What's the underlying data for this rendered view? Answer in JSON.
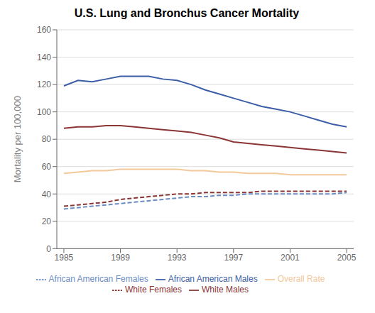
{
  "chart_data": {
    "type": "line",
    "title": "U.S. Lung and Bronchus Cancer Mortality",
    "ylabel": "Mortality per 100,000",
    "x": [
      1985,
      1986,
      1987,
      1988,
      1989,
      1990,
      1991,
      1992,
      1993,
      1994,
      1995,
      1996,
      1997,
      1998,
      1999,
      2000,
      2001,
      2002,
      2003,
      2004,
      2005
    ],
    "series": [
      {
        "name": "White Males",
        "color": "#8B3535",
        "line_style": "solid",
        "values": [
          88,
          89,
          89,
          90,
          90,
          89,
          88,
          87,
          86,
          85,
          83,
          81,
          78,
          77,
          76,
          75,
          74,
          73,
          72,
          71,
          70
        ]
      },
      {
        "name": "White Females",
        "color": "#8B3535",
        "line_style": "dashed",
        "values": [
          31,
          32,
          33,
          34,
          36,
          37,
          38,
          39,
          40,
          40,
          41,
          41,
          41,
          41,
          42,
          42,
          42,
          42,
          42,
          42,
          42
        ]
      },
      {
        "name": "Overall Rate",
        "color": "#F4C89A",
        "line_style": "solid",
        "values": [
          55,
          56,
          57,
          57,
          58,
          58,
          58,
          58,
          58,
          57,
          57,
          56,
          56,
          55,
          55,
          55,
          54,
          54,
          54,
          54,
          54
        ]
      },
      {
        "name": "African American Males",
        "color": "#3B5EA6",
        "line_style": "solid",
        "values": [
          119,
          123,
          122,
          124,
          126,
          126,
          126,
          124,
          123,
          120,
          116,
          113,
          110,
          107,
          104,
          102,
          100,
          97,
          94,
          91,
          89
        ]
      },
      {
        "name": "African American Females",
        "color": "#6B8CC4",
        "line_style": "dashed",
        "values": [
          29,
          30,
          31,
          32,
          33,
          34,
          35,
          36,
          37,
          38,
          38,
          39,
          39,
          40,
          40,
          40,
          40,
          40,
          40,
          40,
          41
        ]
      }
    ],
    "xlim": [
      1984.5,
      2005.5
    ],
    "ylim": [
      0,
      160
    ],
    "xticks": [
      1985,
      1989,
      1993,
      1997,
      2001,
      2005
    ],
    "yticks": [
      0,
      20,
      40,
      60,
      80,
      100,
      120,
      140,
      160
    ],
    "grid": true,
    "legend": "bottom"
  }
}
